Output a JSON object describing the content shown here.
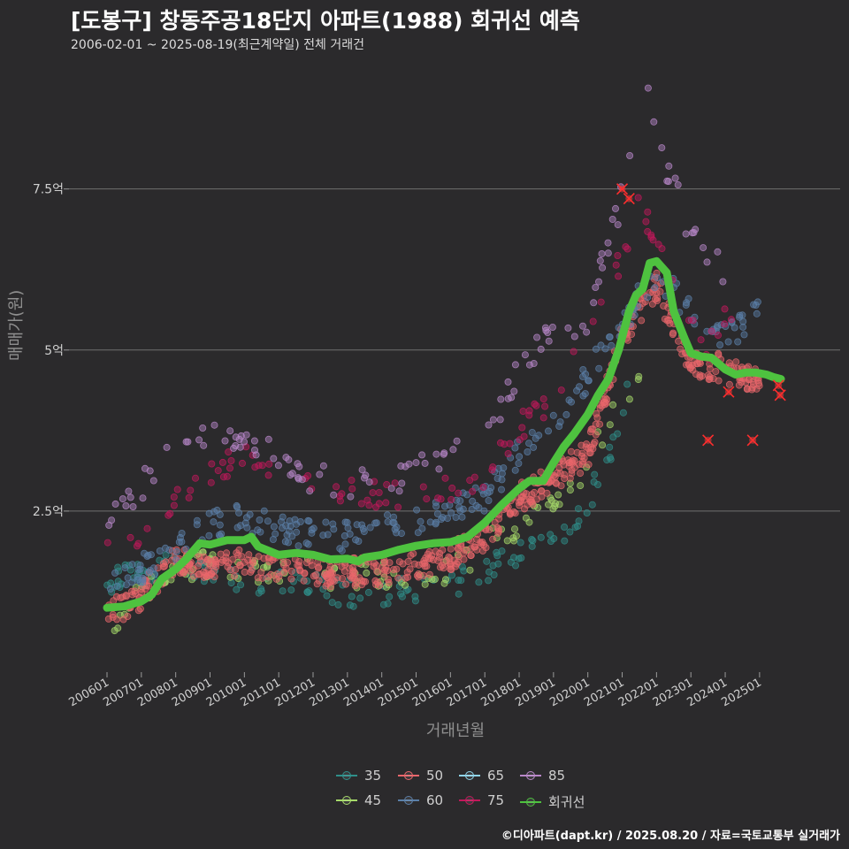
{
  "title": "[도봉구] 창동주공18단지 아파트(1988) 회귀선 예측",
  "subtitle": "2006-02-01 ~ 2025-08-19(최근계약일) 전체 거래건",
  "footer": "©디아파트(dapt.kr) / 2025.08.20 / 자료=국토교통부 실거래가",
  "chart_data": {
    "type": "scatter",
    "xlabel": "거래년월",
    "ylabel": "매매가(원)",
    "x_range": [
      2006.0,
      2025.75
    ],
    "ylim": [
      0.0,
      9.5
    ],
    "y_unit": "억",
    "yticks": [
      {
        "value": 2.5,
        "label": "2.5억"
      },
      {
        "value": 5.0,
        "label": "5억"
      },
      {
        "value": 7.5,
        "label": "7.5억"
      }
    ],
    "xticks": [
      {
        "value": 2006.0,
        "label": "200601"
      },
      {
        "value": 2007.0,
        "label": "200701"
      },
      {
        "value": 2008.0,
        "label": "200801"
      },
      {
        "value": 2009.0,
        "label": "200901"
      },
      {
        "value": 2010.0,
        "label": "201001"
      },
      {
        "value": 2011.0,
        "label": "201101"
      },
      {
        "value": 2012.0,
        "label": "201201"
      },
      {
        "value": 2013.0,
        "label": "201301"
      },
      {
        "value": 2014.0,
        "label": "201401"
      },
      {
        "value": 2015.0,
        "label": "201501"
      },
      {
        "value": 2016.0,
        "label": "201601"
      },
      {
        "value": 2017.0,
        "label": "201701"
      },
      {
        "value": 2018.0,
        "label": "201801"
      },
      {
        "value": 2019.0,
        "label": "201901"
      },
      {
        "value": 2020.0,
        "label": "202001"
      },
      {
        "value": 2021.0,
        "label": "202101"
      },
      {
        "value": 2022.0,
        "label": "202201"
      },
      {
        "value": 2023.0,
        "label": "202301"
      },
      {
        "value": 2024.0,
        "label": "202401"
      },
      {
        "value": 2025.0,
        "label": "202501"
      }
    ],
    "legend_position": "bottom",
    "series": [
      {
        "name": "35",
        "color": "#2f8f8a",
        "trend": [
          [
            2006.0,
            1.35
          ],
          [
            2008.0,
            1.7
          ],
          [
            2009.0,
            1.55
          ],
          [
            2011.0,
            1.35
          ],
          [
            2014.0,
            1.2
          ],
          [
            2016.0,
            1.35
          ],
          [
            2018.0,
            1.8
          ],
          [
            2019.5,
            2.3
          ],
          [
            2020.5,
            3.1
          ],
          [
            2021.2,
            4.5
          ]
        ]
      },
      {
        "name": "45",
        "color": "#a6d96a",
        "trend": [
          [
            2006.0,
            0.75
          ],
          [
            2008.0,
            1.6
          ],
          [
            2009.0,
            1.7
          ],
          [
            2011.0,
            1.55
          ],
          [
            2014.0,
            1.5
          ],
          [
            2016.0,
            1.6
          ],
          [
            2018.0,
            2.3
          ],
          [
            2019.5,
            2.8
          ],
          [
            2020.5,
            3.8
          ],
          [
            2021.5,
            4.7
          ]
        ]
      },
      {
        "name": "50",
        "color": "#e8666b",
        "trend": [
          [
            2006.0,
            0.85
          ],
          [
            2007.0,
            1.2
          ],
          [
            2008.0,
            1.75
          ],
          [
            2009.0,
            1.65
          ],
          [
            2010.0,
            1.7
          ],
          [
            2011.0,
            1.6
          ],
          [
            2012.0,
            1.55
          ],
          [
            2014.0,
            1.55
          ],
          [
            2015.0,
            1.65
          ],
          [
            2016.0,
            1.8
          ],
          [
            2017.0,
            2.1
          ],
          [
            2018.0,
            2.7
          ],
          [
            2019.0,
            3.0
          ],
          [
            2020.0,
            3.4
          ],
          [
            2021.0,
            5.2
          ],
          [
            2022.0,
            6.0
          ],
          [
            2023.0,
            4.8
          ],
          [
            2024.0,
            4.7
          ],
          [
            2025.0,
            4.5
          ]
        ]
      },
      {
        "name": "60",
        "color": "#5b7fa8",
        "trend": [
          [
            2006.0,
            1.25
          ],
          [
            2007.0,
            1.6
          ],
          [
            2008.0,
            1.9
          ],
          [
            2009.0,
            2.3
          ],
          [
            2010.0,
            2.4
          ],
          [
            2011.0,
            2.2
          ],
          [
            2012.0,
            2.15
          ],
          [
            2013.0,
            2.1
          ],
          [
            2014.0,
            2.2
          ],
          [
            2015.0,
            2.3
          ],
          [
            2016.0,
            2.5
          ],
          [
            2017.0,
            2.7
          ],
          [
            2018.0,
            3.4
          ],
          [
            2019.0,
            3.9
          ],
          [
            2020.0,
            4.6
          ],
          [
            2021.0,
            5.4
          ],
          [
            2022.0,
            6.2
          ],
          [
            2023.0,
            5.6
          ],
          [
            2024.0,
            5.2
          ],
          [
            2025.0,
            5.6
          ]
        ]
      },
      {
        "name": "65",
        "color": "#8fd3e8",
        "trend": []
      },
      {
        "name": "75",
        "color": "#c2185b",
        "trend": [
          [
            2006.0,
            1.8
          ],
          [
            2007.0,
            2.2
          ],
          [
            2010.0,
            3.4
          ],
          [
            2012.0,
            2.9
          ],
          [
            2015.0,
            2.7
          ],
          [
            2017.0,
            3.0
          ],
          [
            2018.0,
            3.8
          ],
          [
            2019.0,
            4.3
          ],
          [
            2020.0,
            5.3
          ],
          [
            2021.0,
            6.5
          ],
          [
            2021.5,
            7.3
          ],
          [
            2022.5,
            6.2
          ],
          [
            2023.5,
            5.0
          ],
          [
            2024.5,
            6.0
          ]
        ]
      },
      {
        "name": "85",
        "color": "#b987c9",
        "trend": [
          [
            2006.0,
            2.4
          ],
          [
            2007.0,
            2.9
          ],
          [
            2008.0,
            3.5
          ],
          [
            2010.0,
            3.7
          ],
          [
            2012.0,
            3.0
          ],
          [
            2014.0,
            2.9
          ],
          [
            2015.0,
            3.1
          ],
          [
            2016.0,
            3.4
          ],
          [
            2017.0,
            3.6
          ],
          [
            2018.0,
            4.7
          ],
          [
            2019.0,
            5.3
          ],
          [
            2020.0,
            5.5
          ],
          [
            2021.0,
            7.4
          ],
          [
            2021.8,
            9.3
          ],
          [
            2022.0,
            8.3
          ],
          [
            2023.0,
            6.8
          ],
          [
            2024.0,
            6.2
          ]
        ]
      },
      {
        "name": "회귀선",
        "color": "#4ec23f"
      }
    ],
    "regression_line": {
      "name": "회귀선",
      "color": "#4ec23f",
      "points": [
        [
          2006.0,
          1.0
        ],
        [
          2006.5,
          1.02
        ],
        [
          2007.0,
          1.1
        ],
        [
          2007.3,
          1.2
        ],
        [
          2007.6,
          1.45
        ],
        [
          2008.0,
          1.6
        ],
        [
          2008.3,
          1.75
        ],
        [
          2008.7,
          2.0
        ],
        [
          2009.0,
          1.98
        ],
        [
          2009.5,
          2.05
        ],
        [
          2010.0,
          2.05
        ],
        [
          2010.2,
          2.1
        ],
        [
          2010.4,
          1.95
        ],
        [
          2011.0,
          1.82
        ],
        [
          2011.5,
          1.85
        ],
        [
          2012.0,
          1.82
        ],
        [
          2012.5,
          1.75
        ],
        [
          2013.0,
          1.76
        ],
        [
          2013.3,
          1.72
        ],
        [
          2013.5,
          1.78
        ],
        [
          2014.0,
          1.82
        ],
        [
          2014.5,
          1.9
        ],
        [
          2015.0,
          1.96
        ],
        [
          2015.5,
          2.0
        ],
        [
          2016.0,
          2.02
        ],
        [
          2016.5,
          2.1
        ],
        [
          2017.0,
          2.32
        ],
        [
          2017.5,
          2.6
        ],
        [
          2018.0,
          2.85
        ],
        [
          2018.3,
          2.97
        ],
        [
          2018.7,
          2.97
        ],
        [
          2019.0,
          3.25
        ],
        [
          2019.3,
          3.5
        ],
        [
          2019.6,
          3.7
        ],
        [
          2020.0,
          4.0
        ],
        [
          2020.3,
          4.3
        ],
        [
          2020.6,
          4.55
        ],
        [
          2020.9,
          5.0
        ],
        [
          2021.2,
          5.6
        ],
        [
          2021.4,
          5.85
        ],
        [
          2021.6,
          5.95
        ],
        [
          2021.8,
          6.35
        ],
        [
          2022.0,
          6.38
        ],
        [
          2022.3,
          6.2
        ],
        [
          2022.5,
          5.6
        ],
        [
          2022.8,
          5.2
        ],
        [
          2023.0,
          4.95
        ],
        [
          2023.3,
          4.9
        ],
        [
          2023.6,
          4.88
        ],
        [
          2024.0,
          4.7
        ],
        [
          2024.3,
          4.62
        ],
        [
          2024.6,
          4.65
        ],
        [
          2024.9,
          4.65
        ],
        [
          2025.2,
          4.62
        ],
        [
          2025.4,
          4.58
        ],
        [
          2025.62,
          4.55
        ]
      ]
    },
    "forecast_markers": [
      [
        2021.0,
        7.5
      ],
      [
        2021.2,
        7.35
      ],
      [
        2023.5,
        3.6
      ],
      [
        2024.1,
        4.35
      ],
      [
        2024.8,
        3.6
      ],
      [
        2025.55,
        4.45
      ],
      [
        2025.6,
        4.3
      ]
    ],
    "legend": [
      "35",
      "45",
      "50",
      "60",
      "65",
      "75",
      "85",
      "회귀선"
    ]
  }
}
